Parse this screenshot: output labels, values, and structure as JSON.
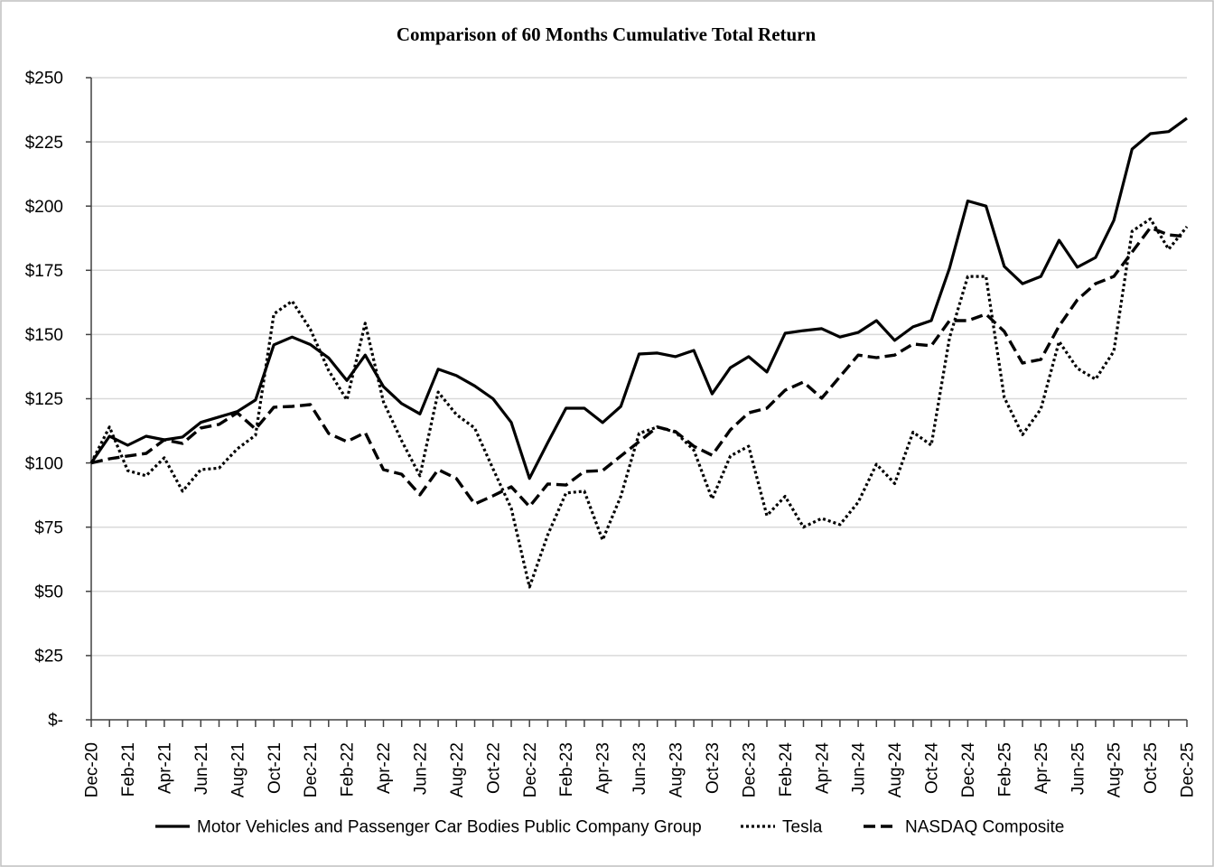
{
  "chart_data": {
    "type": "line",
    "title": "Comparison of 60 Months Cumulative Total Return",
    "x_tick_labels": [
      "Dec-20",
      "Feb-21",
      "Apr-21",
      "Jun-21",
      "Aug-21",
      "Oct-21",
      "Dec-21",
      "Feb-22",
      "Apr-22",
      "Jun-22",
      "Aug-22",
      "Oct-22",
      "Dec-22",
      "Feb-23",
      "Apr-23",
      "Jun-23",
      "Aug-23",
      "Oct-23",
      "Dec-23",
      "Feb-24",
      "Apr-24",
      "Jun-24",
      "Aug-24",
      "Oct-24",
      "Dec-24",
      "Feb-25",
      "Apr-25",
      "Jun-25",
      "Aug-25",
      "Oct-25",
      "Dec-25"
    ],
    "y_ticks": [
      0,
      25,
      50,
      75,
      100,
      125,
      150,
      175,
      200,
      225,
      250
    ],
    "y_tick_labels": [
      "$-",
      "$25",
      "$50",
      "$75",
      "$100",
      "$125",
      "$150",
      "$175",
      "$200",
      "$225",
      "$250"
    ],
    "ylim": [
      0,
      250
    ],
    "grid": true,
    "legend_position": "bottom",
    "series": [
      {
        "name": "Motor Vehicles and Passenger Car Bodies Public Company Group",
        "color": "#000000",
        "values": [
          100,
          110.4,
          106.9,
          110.4,
          109.0,
          110.1,
          115.8,
          117.9,
          120.0,
          124.5,
          146.0,
          149.0,
          146.1,
          140.9,
          132.1,
          142.0,
          129.7,
          123.1,
          119.1,
          136.5,
          134.0,
          130.0,
          125.0,
          115.8,
          94.0,
          107.9,
          121.3,
          121.3,
          115.7,
          122.0,
          142.4,
          142.8,
          141.4,
          143.8,
          126.9,
          137.1,
          141.4,
          135.4,
          150.5,
          151.5,
          152.3,
          149.0,
          150.8,
          155.4,
          147.7,
          153.0,
          155.4,
          175.8,
          202.0,
          200.0,
          176.5,
          169.8,
          172.6,
          186.7,
          176.2,
          180.0,
          194.4,
          222.2,
          228.2,
          229.0,
          234.2
        ]
      },
      {
        "name": "Tesla",
        "color": "#000000",
        "values": [
          100,
          114.0,
          97.0,
          95.0,
          102.0,
          89.0,
          97.4,
          98.0,
          105.5,
          110.8,
          158.0,
          163.0,
          152.0,
          136.0,
          124.5,
          154.4,
          123.8,
          108.6,
          95.0,
          127.6,
          118.8,
          113.6,
          97.7,
          82.3,
          51.7,
          72.0,
          88.3,
          89.0,
          70.0,
          87.0,
          111.5,
          114.0,
          112.0,
          105.0,
          86.0,
          102.7,
          106.5,
          79.5,
          87.0,
          75.0,
          78.4,
          76.0,
          84.7,
          99.5,
          92.0,
          112.0,
          106.9,
          148.7,
          172.6,
          172.6,
          125.5,
          111.0,
          121.0,
          147.3,
          136.8,
          132.6,
          143.5,
          190.2,
          195.0,
          183.2,
          192.0
        ]
      },
      {
        "name": "NASDAQ Composite",
        "color": "#000000",
        "values": [
          100,
          101.6,
          102.7,
          103.7,
          109.0,
          107.6,
          113.6,
          115.0,
          119.5,
          113.2,
          121.7,
          122.0,
          122.7,
          111.5,
          108.3,
          111.8,
          97.4,
          95.6,
          87.6,
          97.4,
          93.9,
          84.0,
          87.2,
          90.7,
          83.0,
          91.8,
          91.4,
          96.7,
          97.0,
          102.7,
          108.3,
          114.0,
          112.2,
          106.5,
          103.0,
          112.9,
          119.5,
          121.3,
          128.3,
          131.5,
          125.2,
          133.6,
          142.0,
          141.0,
          142.0,
          146.3,
          145.6,
          155.4,
          155.4,
          157.9,
          151.2,
          138.9,
          140.3,
          153.3,
          163.5,
          169.8,
          172.6,
          182.1,
          191.6,
          188.8,
          188.1
        ]
      }
    ]
  }
}
